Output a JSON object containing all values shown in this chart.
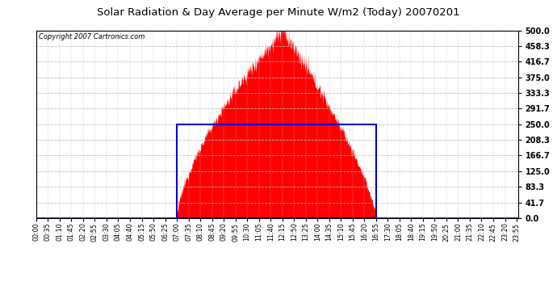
{
  "title": "Solar Radiation & Day Average per Minute W/m2 (Today) 20070201",
  "copyright": "Copyright 2007 Cartronics.com",
  "bg_color": "#ffffff",
  "plot_bg_color": "#ffffff",
  "grid_color": "#bbbbbb",
  "ylim": [
    0,
    500
  ],
  "yticks": [
    0.0,
    41.7,
    83.3,
    125.0,
    166.7,
    208.3,
    250.0,
    291.7,
    333.3,
    375.0,
    416.7,
    458.3,
    500.0
  ],
  "solar_color": "#ff0000",
  "avg_box_color": "#0000cc",
  "avg_value": 250.0,
  "sunrise_min": 420,
  "sunset_min": 1015,
  "peak_min": 735,
  "peak_value": 500,
  "n_points": 1440,
  "tick_interval_min": 35
}
